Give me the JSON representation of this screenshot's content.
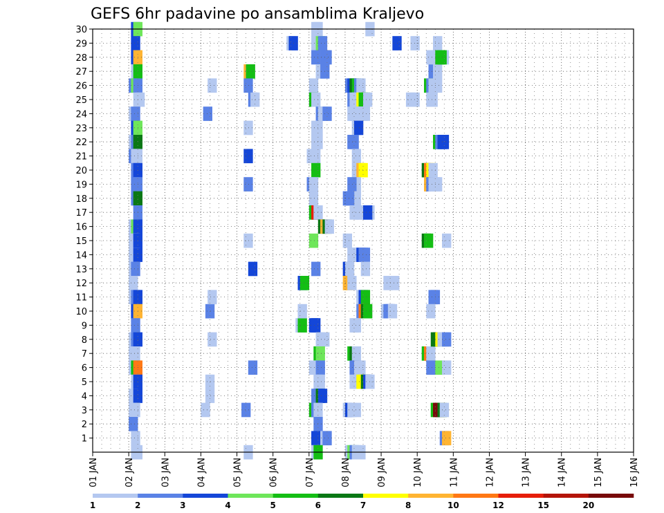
{
  "chart_data": {
    "type": "heatmap",
    "title": "GEFS 6hr padavine po ansamblima Kraljevo",
    "xlabel": "",
    "ylabel": "",
    "x_ticks": [
      "01 JAN",
      "02 JAN",
      "03 JAN",
      "04 JAN",
      "05 JAN",
      "06 JAN",
      "07 JAN",
      "08 JAN",
      "09 JAN",
      "10 JAN",
      "11 JAN",
      "12 JAN",
      "13 JAN",
      "14 JAN",
      "15 JAN",
      "16 JAN"
    ],
    "y_ticks": [
      "1",
      "2",
      "3",
      "4",
      "5",
      "6",
      "7",
      "8",
      "9",
      "10",
      "11",
      "12",
      "13",
      "14",
      "15",
      "16",
      "17",
      "18",
      "19",
      "20",
      "21",
      "22",
      "23",
      "24",
      "25",
      "26",
      "27",
      "28",
      "29",
      "30"
    ],
    "x_range_days": [
      1,
      16
    ],
    "steps_per_day": 4,
    "y_range": [
      0,
      30
    ],
    "grid": true,
    "colorbar": {
      "bounds": [
        1,
        2,
        3,
        4,
        5,
        6,
        7,
        8,
        10,
        12,
        15,
        20
      ],
      "labels": [
        "1",
        "2",
        "3",
        "4",
        "5",
        "6",
        "7",
        "8",
        "10",
        "12",
        "15",
        "20"
      ],
      "colors": [
        "#b4c8f0",
        "#5a82e6",
        "#1446d8",
        "#6ee65a",
        "#14be14",
        "#0a7814",
        "#ffff00",
        "#ffb432",
        "#ff7814",
        "#e61e0a",
        "#b4140a",
        "#780a0a"
      ]
    },
    "cells": [
      [
        4.25,
        30,
        3
      ],
      [
        4.5,
        30,
        4
      ],
      [
        4.25,
        29,
        3
      ],
      [
        4.25,
        28,
        3
      ],
      [
        4.5,
        28,
        8
      ],
      [
        4.25,
        27,
        1
      ],
      [
        4.5,
        27,
        5
      ],
      [
        4,
        26,
        2
      ],
      [
        4.25,
        26,
        4
      ],
      [
        4.5,
        26,
        2
      ],
      [
        4.5,
        25,
        1
      ],
      [
        4.75,
        25,
        1
      ],
      [
        4,
        24,
        1
      ],
      [
        4.25,
        24,
        2
      ],
      [
        4.25,
        23,
        3
      ],
      [
        4.5,
        23,
        4
      ],
      [
        4,
        22,
        1
      ],
      [
        4.25,
        22,
        2
      ],
      [
        4.5,
        22,
        6
      ],
      [
        4,
        21,
        2
      ],
      [
        4.25,
        21,
        1
      ],
      [
        4.5,
        21,
        1
      ],
      [
        4.25,
        20,
        2
      ],
      [
        4.5,
        20,
        3
      ],
      [
        4.25,
        19,
        2
      ],
      [
        4.5,
        19,
        2
      ],
      [
        4.25,
        18,
        2
      ],
      [
        4.5,
        18,
        6
      ],
      [
        4.5,
        17,
        2
      ],
      [
        4,
        16,
        1
      ],
      [
        4.25,
        16,
        4
      ],
      [
        4.5,
        16,
        3
      ],
      [
        4,
        15,
        1
      ],
      [
        4.25,
        15,
        1
      ],
      [
        4.5,
        15,
        3
      ],
      [
        4,
        14,
        1
      ],
      [
        4.25,
        14,
        1
      ],
      [
        4.5,
        14,
        3
      ],
      [
        4,
        13,
        1
      ],
      [
        4.25,
        13,
        2
      ],
      [
        4,
        12,
        1
      ],
      [
        4,
        11,
        1
      ],
      [
        4.25,
        11,
        2
      ],
      [
        4.5,
        11,
        3
      ],
      [
        4.25,
        10,
        3
      ],
      [
        4.5,
        10,
        8
      ],
      [
        4.25,
        9,
        2
      ],
      [
        4,
        8,
        1
      ],
      [
        4.25,
        8,
        2
      ],
      [
        4.5,
        8,
        3
      ],
      [
        4,
        7,
        1
      ],
      [
        4.25,
        7,
        1
      ],
      [
        4,
        6,
        1
      ],
      [
        4.25,
        6,
        5
      ],
      [
        4.5,
        6,
        9
      ],
      [
        4.25,
        5,
        1
      ],
      [
        4.5,
        5,
        3
      ],
      [
        4,
        4,
        1
      ],
      [
        4.5,
        4,
        3
      ],
      [
        4,
        3,
        1
      ],
      [
        4.25,
        3,
        1
      ],
      [
        4,
        2,
        2
      ],
      [
        4.25,
        1,
        1
      ],
      [
        4.25,
        0,
        1
      ],
      [
        4.5,
        0,
        1
      ],
      [
        12.75,
        26,
        1
      ],
      [
        12.25,
        24,
        2
      ],
      [
        12.5,
        10,
        2
      ],
      [
        12.75,
        11,
        1
      ],
      [
        12.75,
        8,
        1
      ],
      [
        12.5,
        5,
        1
      ],
      [
        12.5,
        4,
        1
      ],
      [
        12,
        3,
        1
      ],
      [
        16.75,
        27,
        8
      ],
      [
        17,
        27,
        5
      ],
      [
        16.75,
        26,
        2
      ],
      [
        17.25,
        25,
        2
      ],
      [
        17.5,
        25,
        1
      ],
      [
        16.75,
        23,
        1
      ],
      [
        16.75,
        21,
        3
      ],
      [
        16.75,
        19,
        2
      ],
      [
        16.75,
        15,
        1
      ],
      [
        17.25,
        13,
        3
      ],
      [
        17.25,
        6,
        2
      ],
      [
        16.5,
        3,
        2
      ],
      [
        16.75,
        0,
        1
      ],
      [
        21.5,
        29,
        1
      ],
      [
        21.75,
        29,
        3
      ],
      [
        22.75,
        12,
        3
      ],
      [
        23,
        12,
        5
      ],
      [
        22.5,
        9,
        1
      ],
      [
        22.75,
        9,
        5
      ],
      [
        22.75,
        10,
        1
      ],
      [
        24.25,
        30,
        1
      ],
      [
        24.5,
        30,
        1
      ],
      [
        24.25,
        29,
        1
      ],
      [
        24.5,
        29,
        1
      ],
      [
        24.75,
        29,
        4
      ],
      [
        25,
        29,
        2
      ],
      [
        24.25,
        28,
        2
      ],
      [
        25.25,
        28,
        2
      ],
      [
        25.5,
        28,
        2
      ],
      [
        24.75,
        27,
        1
      ],
      [
        25.25,
        27,
        2
      ],
      [
        24,
        26,
        1
      ],
      [
        24,
        25,
        5
      ],
      [
        24.25,
        25,
        1
      ],
      [
        24.75,
        24,
        2
      ],
      [
        25,
        24,
        1
      ],
      [
        25.25,
        24,
        1
      ],
      [
        25.5,
        24,
        2
      ],
      [
        24.25,
        23,
        1
      ],
      [
        24.5,
        23,
        1
      ],
      [
        24.25,
        22,
        1
      ],
      [
        24.5,
        22,
        1
      ],
      [
        23.75,
        21,
        1
      ],
      [
        24,
        21,
        1
      ],
      [
        24.25,
        21,
        1
      ],
      [
        24.25,
        20,
        5
      ],
      [
        23.75,
        19,
        2
      ],
      [
        24,
        19,
        1
      ],
      [
        24,
        18,
        1
      ],
      [
        24,
        17,
        5
      ],
      [
        24.25,
        17,
        10
      ],
      [
        24.5,
        17,
        1
      ],
      [
        25,
        16,
        6
      ],
      [
        25.25,
        16,
        8
      ],
      [
        25.5,
        16,
        6
      ],
      [
        25.75,
        16,
        1
      ],
      [
        24,
        15,
        4
      ],
      [
        24.25,
        13,
        2
      ],
      [
        24,
        9,
        3
      ],
      [
        24.25,
        9,
        3
      ],
      [
        24.75,
        8,
        1
      ],
      [
        25.25,
        8,
        1
      ],
      [
        24.5,
        7,
        5
      ],
      [
        24.75,
        7,
        4
      ],
      [
        24,
        6,
        1
      ],
      [
        24.5,
        6,
        1
      ],
      [
        24.75,
        6,
        2
      ],
      [
        24.5,
        5,
        1
      ],
      [
        24.75,
        5,
        1
      ],
      [
        24.25,
        4,
        2
      ],
      [
        24.5,
        4,
        2
      ],
      [
        24.75,
        4,
        6
      ],
      [
        25,
        4,
        3
      ],
      [
        24,
        3,
        5
      ],
      [
        24.25,
        3,
        2
      ],
      [
        24.5,
        3,
        1
      ],
      [
        24.5,
        2,
        2
      ],
      [
        24.25,
        1,
        3
      ],
      [
        25.25,
        1,
        1
      ],
      [
        25.5,
        1,
        2
      ],
      [
        24.25,
        0,
        1
      ],
      [
        24.5,
        0,
        5
      ],
      [
        28,
        26,
        2
      ],
      [
        28.25,
        26,
        3
      ],
      [
        28.5,
        26,
        6
      ],
      [
        28.75,
        26,
        5
      ],
      [
        29,
        26,
        2
      ],
      [
        29.25,
        26,
        1
      ],
      [
        28.25,
        25,
        2
      ],
      [
        28.5,
        25,
        1
      ],
      [
        28.75,
        25,
        1
      ],
      [
        29.25,
        25,
        7
      ],
      [
        29.5,
        25,
        5
      ],
      [
        29.75,
        25,
        5
      ],
      [
        30,
        25,
        1
      ],
      [
        29.25,
        24,
        1
      ],
      [
        29.5,
        24,
        1
      ],
      [
        29.75,
        24,
        1
      ],
      [
        28.25,
        24,
        1
      ],
      [
        28.5,
        24,
        1
      ],
      [
        28.75,
        24,
        1
      ],
      [
        29,
        24,
        1
      ],
      [
        28.75,
        23,
        1
      ],
      [
        29,
        23,
        3
      ],
      [
        28.25,
        22,
        2
      ],
      [
        28.5,
        22,
        2
      ],
      [
        28.75,
        21,
        1
      ],
      [
        28.75,
        20,
        1
      ],
      [
        29.25,
        20,
        8
      ],
      [
        29.5,
        20,
        7
      ],
      [
        28.75,
        19,
        1
      ],
      [
        28.25,
        19,
        2
      ],
      [
        28.75,
        18,
        1
      ],
      [
        27.75,
        18,
        2
      ],
      [
        28,
        18,
        2
      ],
      [
        28.5,
        17,
        1
      ],
      [
        29,
        17,
        1
      ],
      [
        29.25,
        17,
        1
      ],
      [
        27.75,
        15,
        1
      ],
      [
        28.25,
        14,
        1
      ],
      [
        28.5,
        14,
        1
      ],
      [
        28.75,
        14,
        1
      ],
      [
        29.25,
        14,
        3
      ],
      [
        29.5,
        14,
        2
      ],
      [
        29.75,
        14,
        2
      ],
      [
        27.75,
        13,
        3
      ],
      [
        28,
        13,
        1
      ],
      [
        27.75,
        12,
        8
      ],
      [
        28,
        12,
        8
      ],
      [
        28.25,
        12,
        1
      ],
      [
        29.25,
        11,
        1
      ],
      [
        29.5,
        11,
        3
      ],
      [
        29.75,
        11,
        5
      ],
      [
        29.25,
        10,
        2
      ],
      [
        29.5,
        10,
        9
      ],
      [
        29.75,
        10,
        6
      ],
      [
        30,
        10,
        5
      ],
      [
        28.5,
        9,
        1
      ],
      [
        28.75,
        9,
        1
      ],
      [
        28.25,
        7,
        5
      ],
      [
        28.5,
        7,
        6
      ],
      [
        28.75,
        7,
        1
      ],
      [
        28.5,
        6,
        2
      ],
      [
        28.75,
        6,
        2
      ],
      [
        29,
        6,
        1
      ],
      [
        29.25,
        6,
        1
      ],
      [
        28.5,
        5,
        1
      ],
      [
        29,
        5,
        1
      ],
      [
        29.25,
        5,
        7
      ],
      [
        29.5,
        5,
        7
      ],
      [
        29.75,
        5,
        6
      ],
      [
        30,
        5,
        3
      ],
      [
        30.25,
        5,
        1
      ],
      [
        27.75,
        3,
        1
      ],
      [
        28,
        3,
        3
      ],
      [
        28.25,
        3,
        1
      ],
      [
        28.75,
        3,
        1
      ],
      [
        28,
        0,
        1
      ],
      [
        28.25,
        0,
        4
      ],
      [
        28.5,
        0,
        2
      ],
      [
        28.75,
        0,
        1
      ],
      [
        29.25,
        0,
        1
      ],
      [
        30.25,
        30,
        1
      ],
      [
        30.25,
        17,
        1
      ],
      [
        29.75,
        13,
        1
      ],
      [
        29.75,
        17,
        1
      ],
      [
        30,
        17,
        3
      ],
      [
        33.25,
        29,
        3
      ],
      [
        32.25,
        12,
        1
      ],
      [
        33,
        12,
        1
      ],
      [
        32,
        10,
        1
      ],
      [
        32.25,
        10,
        2
      ],
      [
        32.5,
        10,
        2
      ],
      [
        32.75,
        10,
        1
      ],
      [
        35.25,
        29,
        1
      ],
      [
        35.25,
        25,
        1
      ],
      [
        34.75,
        25,
        1
      ],
      [
        37,
        28,
        1
      ],
      [
        37.25,
        27,
        2
      ],
      [
        36.75,
        26,
        5
      ],
      [
        37,
        26,
        2
      ],
      [
        37.25,
        26,
        1
      ],
      [
        37.75,
        26,
        1
      ],
      [
        37,
        25,
        1
      ],
      [
        37.25,
        25,
        1
      ],
      [
        37.75,
        28,
        1
      ],
      [
        38,
        28,
        1
      ],
      [
        37.75,
        29,
        1
      ],
      [
        37.25,
        28,
        1
      ],
      [
        36.5,
        20,
        6
      ],
      [
        36.75,
        20,
        9
      ],
      [
        37,
        20,
        7
      ],
      [
        37.25,
        20,
        1
      ],
      [
        36.75,
        19,
        8
      ],
      [
        37,
        19,
        2
      ],
      [
        37.25,
        19,
        1
      ],
      [
        37.5,
        19,
        1
      ],
      [
        37.75,
        19,
        1
      ],
      [
        36.5,
        15,
        6
      ],
      [
        36.75,
        15,
        5
      ],
      [
        37.25,
        11,
        2
      ],
      [
        37.5,
        11,
        2
      ],
      [
        37,
        10,
        1
      ],
      [
        36.5,
        7,
        5
      ],
      [
        36.75,
        7,
        9
      ],
      [
        37,
        7,
        1
      ],
      [
        37,
        6,
        2
      ],
      [
        37.5,
        3,
        5
      ],
      [
        37.75,
        3,
        12
      ],
      [
        38,
        3,
        12
      ],
      [
        38.25,
        3,
        6
      ],
      [
        38.5,
        3,
        1
      ],
      [
        37.5,
        8,
        6
      ],
      [
        37.75,
        8,
        6
      ],
      [
        38,
        8,
        7
      ],
      [
        38.25,
        8,
        1
      ],
      [
        38.5,
        8,
        1
      ],
      [
        38.75,
        8,
        2
      ],
      [
        38,
        6,
        4
      ],
      [
        38.75,
        6,
        1
      ],
      [
        37.75,
        22,
        5
      ],
      [
        38,
        22,
        2
      ],
      [
        38.25,
        22,
        3
      ],
      [
        38.5,
        22,
        3
      ],
      [
        38.75,
        15,
        1
      ],
      [
        38.5,
        1,
        2
      ],
      [
        38.75,
        1,
        8
      ],
      [
        38.5,
        28,
        1
      ],
      [
        37.75,
        27,
        1
      ],
      [
        38,
        28,
        5
      ],
      [
        38.25,
        28,
        5
      ]
    ]
  }
}
